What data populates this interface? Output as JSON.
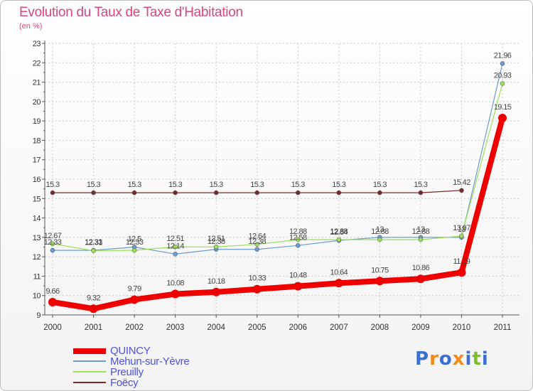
{
  "title": "Evolution du Taux de Taxe d'Habitation",
  "unit": "(en %)",
  "logo": {
    "text": "Proxiti",
    "letters": [
      "P",
      "r",
      "o",
      "x",
      "i",
      "t",
      "i"
    ],
    "colors": [
      "#3a6fd4",
      "#f08a1c",
      "#3a6fd4",
      "#f08a1c",
      "#3a6fd4",
      "#7bbf2a",
      "#3a6fd4"
    ]
  },
  "chart_data": {
    "type": "line",
    "title": "Evolution du Taux de Taxe d'Habitation",
    "ylabel": "(en %)",
    "xlabel": "",
    "ylim": [
      9,
      23
    ],
    "yticks": [
      "9",
      "10",
      "11",
      "12",
      "13",
      "14",
      "15",
      "16",
      "17",
      "18",
      "19",
      "20",
      "21",
      "22",
      "23"
    ],
    "categories": [
      "2000",
      "2001",
      "2002",
      "2003",
      "2004",
      "2005",
      "2006",
      "2007",
      "2008",
      "2009",
      "2010",
      "2011"
    ],
    "series": [
      {
        "name": "QUINCY",
        "color": "#ee0000",
        "width": 8,
        "marker": 6,
        "values": [
          9.66,
          9.32,
          9.79,
          10.08,
          10.18,
          10.33,
          10.48,
          10.64,
          10.75,
          10.86,
          11.19,
          19.15
        ],
        "labels": [
          "9.66",
          "9.32",
          "9.79",
          "10.08",
          "10.18",
          "10.33",
          "10.48",
          "10.64",
          "10.75",
          "10.86",
          "11.19",
          "19.15"
        ]
      },
      {
        "name": "Mehun-sur-Yèvre",
        "color": "#6b9bd2",
        "width": 1.2,
        "marker": 3,
        "values": [
          12.33,
          12.33,
          12.5,
          12.14,
          12.38,
          12.38,
          12.58,
          12.84,
          13,
          13,
          13,
          21.96
        ],
        "labels": [
          "12.33",
          "12.33",
          "12.5",
          "12.14",
          "12.38",
          "12.38",
          "12.58",
          "12.84",
          "13",
          "13",
          "13",
          "21.96"
        ]
      },
      {
        "name": "Preuilly",
        "color": "#9be058",
        "width": 1.2,
        "marker": 3,
        "values": [
          12.67,
          12.31,
          12.33,
          12.51,
          12.51,
          12.64,
          12.88,
          12.88,
          12.88,
          12.88,
          13.07,
          20.93
        ],
        "labels": [
          "12.67",
          "12.31",
          "12.33",
          "12.51",
          "12.51",
          "12.64",
          "12.88",
          "12.88",
          "12.88",
          "12.88",
          "13.07",
          "20.93"
        ]
      },
      {
        "name": "Foëcy",
        "color": "#7a2a2a",
        "width": 1.2,
        "marker": 3,
        "values": [
          15.3,
          15.3,
          15.3,
          15.3,
          15.3,
          15.3,
          15.3,
          15.3,
          15.3,
          15.3,
          15.42,
          null
        ],
        "labels": [
          "15.3",
          "15.3",
          "15.3",
          "15.3",
          "15.3",
          "15.3",
          "15.3",
          "15.3",
          "15.3",
          "15.3",
          "15.42",
          ""
        ]
      }
    ],
    "legend": [
      "QUINCY",
      "Mehun-sur-Yèvre",
      "Preuilly",
      "Foëcy"
    ],
    "legend_position": "bottom-left"
  }
}
